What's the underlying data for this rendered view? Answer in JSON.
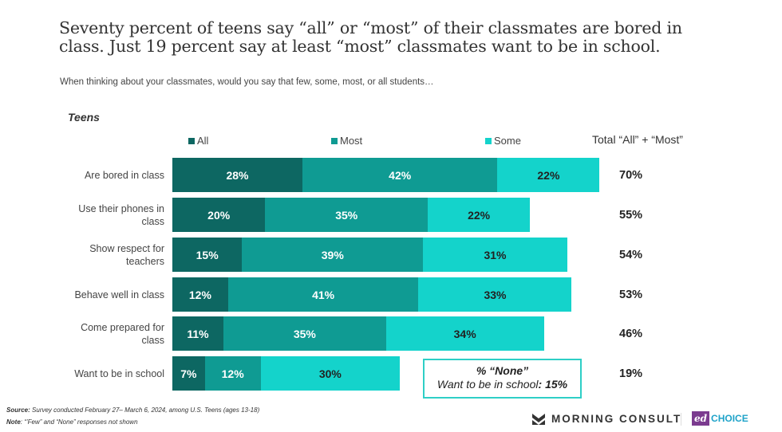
{
  "header": {
    "title": "Seventy percent of teens say “all” or “most” of their classmates are bored in class. Just 19 percent say at least “most” classmates want to be in school.",
    "subtitle": "When thinking about your classmates, would you say that few, some, most, or all students…"
  },
  "group_label": "Teens",
  "legend": [
    {
      "label": "All",
      "color": "#0d6762"
    },
    {
      "label": "Most",
      "color": "#0f9b93"
    },
    {
      "label": "Some",
      "color": "#14d3cb"
    }
  ],
  "total_header": "Total “All” + “Most”",
  "rows": [
    {
      "label": "Are bored in class",
      "all": "28%",
      "most": "42%",
      "some": "22%",
      "total": "70%"
    },
    {
      "label": "Use their phones in class",
      "all": "20%",
      "most": "35%",
      "some": "22%",
      "total": "55%"
    },
    {
      "label": "Show respect for teachers",
      "all": "15%",
      "most": "39%",
      "some": "31%",
      "total": "54%"
    },
    {
      "label": "Behave well in class",
      "all": "12%",
      "most": "41%",
      "some": "33%",
      "total": "53%"
    },
    {
      "label": "Come prepared for class",
      "all": "11%",
      "most": "35%",
      "some": "34%",
      "total": "46%"
    },
    {
      "label": "Want to be in school",
      "all": "7%",
      "most": "12%",
      "some": "30%",
      "total": "19%"
    }
  ],
  "none_box": {
    "title": "% “None”",
    "label": "Want to be in school",
    "value": "15%"
  },
  "footer": {
    "source_label": "Source:",
    "source_text": "Survey conducted February 27– March 6, 2024,  among U.S. Teens (ages 13-18)",
    "note_label": "Note",
    "note_text": ": “’Few” and “None” responses not shown"
  },
  "logos": {
    "morning_consult": "MORNING CONSULT",
    "ed_mark": "ed",
    "ed_text": "CHOICE"
  },
  "chart_data": {
    "type": "bar",
    "orientation": "horizontal",
    "stacked": true,
    "title": "Seventy percent of teens say “all” or “most” of their classmates are bored in class. Just 19 percent say at least “most” classmates want to be in school.",
    "subtitle": "When thinking about your classmates, would you say that few, some, most, or all students…",
    "group": "Teens",
    "categories": [
      "Are bored in class",
      "Use their phones in class",
      "Show respect for teachers",
      "Behave well in class",
      "Come prepared for class",
      "Want to be in school"
    ],
    "series": [
      {
        "name": "All",
        "color": "#0d6762",
        "values": [
          28,
          20,
          15,
          12,
          11,
          7
        ]
      },
      {
        "name": "Most",
        "color": "#0f9b93",
        "values": [
          42,
          35,
          39,
          41,
          35,
          12
        ]
      },
      {
        "name": "Some",
        "color": "#14d3cb",
        "values": [
          22,
          22,
          31,
          33,
          34,
          30
        ]
      }
    ],
    "totals_label": "Total “All” + “Most”",
    "totals": [
      70,
      55,
      54,
      53,
      46,
      19
    ],
    "annotation": "% “None” Want to be in school: 15%",
    "legend_position": "top",
    "grid": false,
    "xlabel": "",
    "ylabel": ""
  }
}
